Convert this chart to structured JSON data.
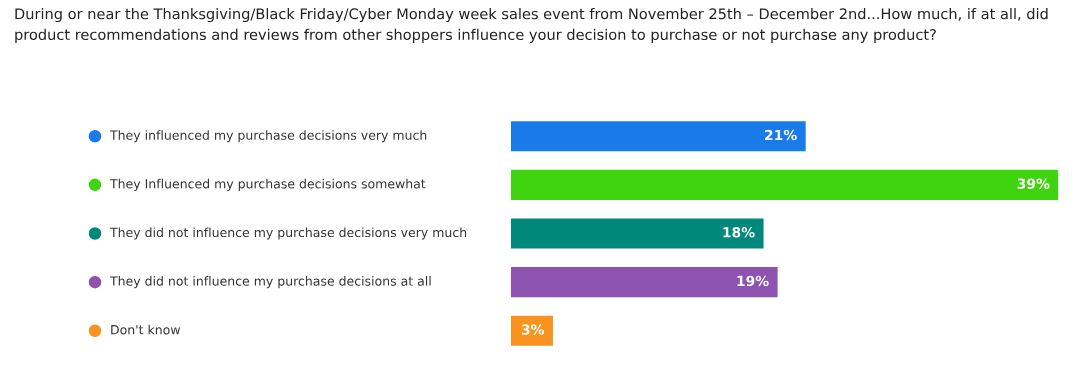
{
  "chart_data": {
    "type": "bar",
    "orientation": "horizontal",
    "title": "During or near the Thanksgiving/Black Friday/Cyber Monday week sales event from November 25th – December 2nd...How much, if at all, did product recommendations and reviews from other shoppers influence your decision to purchase or not purchase any product?",
    "categories": [
      "They influenced my purchase decisions very much",
      "They Influenced my purchase decisions somewhat",
      "They did not influence my purchase decisions very much",
      "They did not influence my purchase decisions at all",
      "Don't know"
    ],
    "values": [
      21,
      39,
      18,
      19,
      3
    ],
    "colors": [
      "#1a7ae8",
      "#3fd40f",
      "#00897b",
      "#8e52b0",
      "#f7931e"
    ],
    "value_labels": [
      "21%",
      "39%",
      "18%",
      "19%",
      "3%"
    ],
    "xlim": [
      0,
      39
    ]
  }
}
